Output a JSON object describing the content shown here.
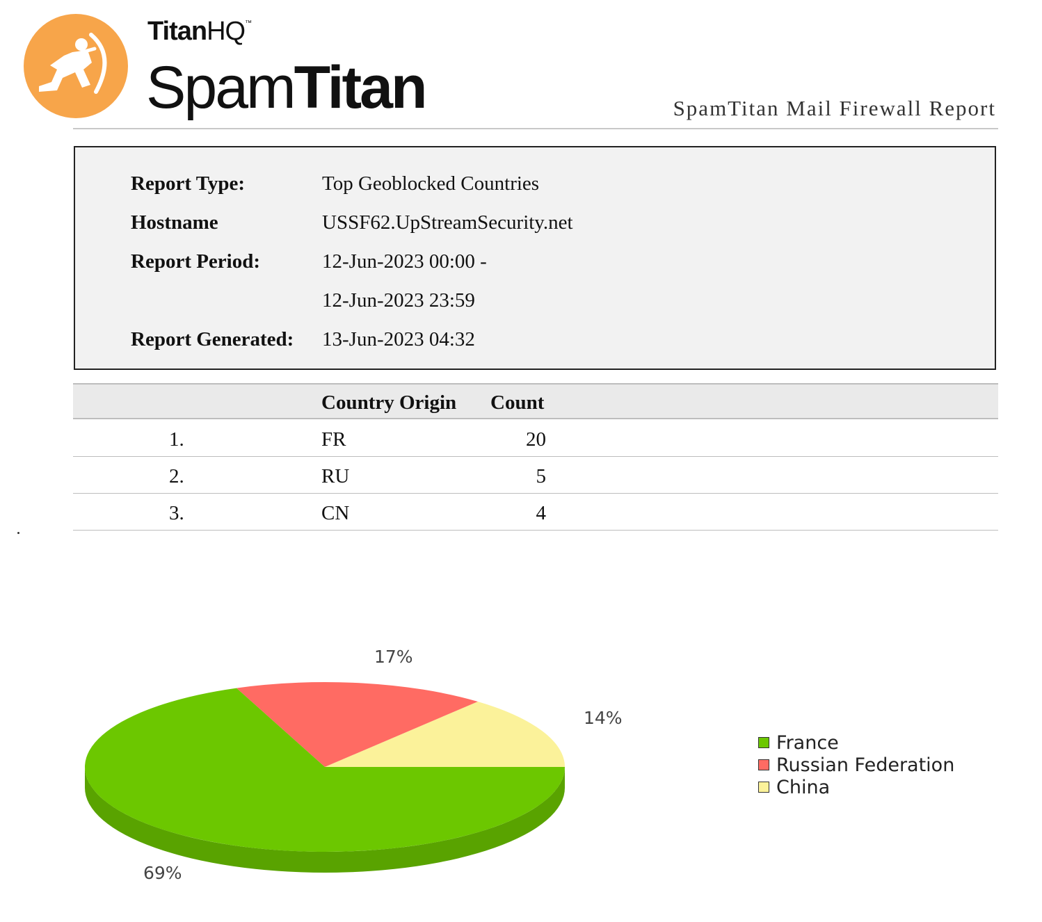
{
  "brand": {
    "company": "TitanHQ",
    "company_bold": "Titan",
    "company_light": "HQ",
    "product_light": "Spam",
    "product_bold": "Titan",
    "logo_color": "#f7a54a",
    "logo_icon": "archer-icon"
  },
  "report_caption": "SpamTitan Mail Firewall Report",
  "info": {
    "report_type_label": "Report Type:",
    "report_type_value": "Top Geoblocked Countries",
    "hostname_label": "Hostname",
    "hostname_value": "USSF62.UpStreamSecurity.net",
    "period_label": "Report Period:",
    "period_start": "12-Jun-2023 00:00 -",
    "period_end": "12-Jun-2023 23:59",
    "generated_label": "Report Generated:",
    "generated_value": "13-Jun-2023 04:32"
  },
  "table": {
    "headers": [
      "Country Origin",
      "Count"
    ],
    "rows": [
      {
        "rank": "1.",
        "country": "FR",
        "count": "20"
      },
      {
        "rank": "2.",
        "country": "RU",
        "count": "5"
      },
      {
        "rank": "3.",
        "country": "CN",
        "count": "4"
      }
    ]
  },
  "chart_data": {
    "type": "pie",
    "categories": [
      "France",
      "Russian Federation",
      "China"
    ],
    "values": [
      69,
      17,
      14
    ],
    "labels": [
      "69%",
      "17%",
      "14%"
    ],
    "colors": [
      "#6cc700",
      "#ff6b63",
      "#fbf29a"
    ],
    "legend_position": "right",
    "three_d": true
  }
}
